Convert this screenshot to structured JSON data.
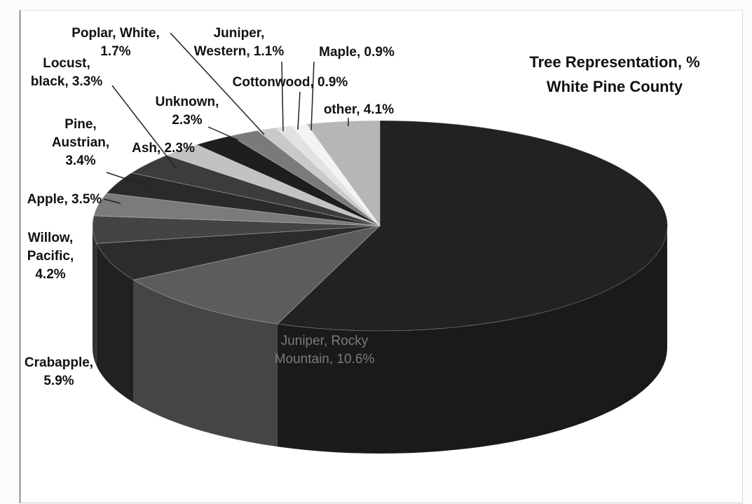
{
  "chart_data": {
    "type": "pie",
    "title": "Tree Representation, %",
    "subtitle": "White Pine County",
    "slices": [
      {
        "label": "Juniper, Rocky Mountain",
        "value": 10.6,
        "display": [
          "Juniper, Rocky",
          "Mountain, 10.6%"
        ],
        "color": "#5c5c5c"
      },
      {
        "label": "Crabapple",
        "value": 5.9,
        "display": [
          "Crabapple,",
          "5.9%"
        ],
        "color": "#2c2c2c"
      },
      {
        "label": "Willow, Pacific",
        "value": 4.2,
        "display": [
          "Willow,",
          "Pacific,",
          "4.2%"
        ],
        "color": "#444444"
      },
      {
        "label": "Apple",
        "value": 3.5,
        "display": [
          "Apple, 3.5%"
        ],
        "color": "#7b7b7b"
      },
      {
        "label": "Pine, Austrian",
        "value": 3.4,
        "display": [
          "Pine,",
          "Austrian,",
          "3.4%"
        ],
        "color": "#2a2a2a"
      },
      {
        "label": "Locust, black",
        "value": 3.3,
        "display": [
          "Locust,",
          "black, 3.3%"
        ],
        "color": "#3c3c3c"
      },
      {
        "label": "Ash",
        "value": 2.3,
        "display": [
          "Ash, 2.3%"
        ],
        "color": "#c2c2c2"
      },
      {
        "label": "Unknown",
        "value": 2.3,
        "display": [
          "Unknown,",
          "2.3%"
        ],
        "color": "#1e1e1e"
      },
      {
        "label": "Poplar, White",
        "value": 1.7,
        "display": [
          "Poplar, White,",
          "1.7%"
        ],
        "color": "#7a7a7a"
      },
      {
        "label": "Juniper, Western",
        "value": 1.1,
        "display": [
          "Juniper,",
          "Western, 1.1%"
        ],
        "color": "#c9c9c9"
      },
      {
        "label": "Cottonwood",
        "value": 0.9,
        "display": [
          "Cottonwood, 0.9%"
        ],
        "color": "#e2e2e2"
      },
      {
        "label": "Maple",
        "value": 0.9,
        "display": [
          "Maple, 0.9%"
        ],
        "color": "#f3f3f3"
      },
      {
        "label": "other",
        "value": 4.1,
        "display": [
          "other, 4.1%"
        ],
        "color": "#b6b6b6"
      }
    ],
    "legend": "none"
  }
}
